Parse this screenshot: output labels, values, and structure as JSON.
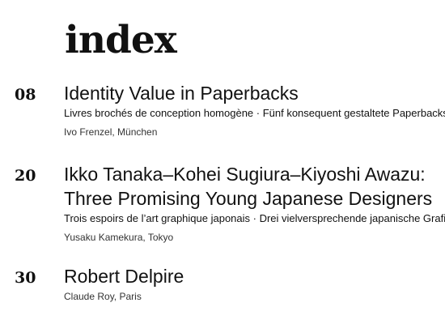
{
  "heading": "index",
  "entries": [
    {
      "number": "08",
      "title_lines": [
        "Identity Value in Paperbacks"
      ],
      "subtitle": "Livres brochés de conception homogène · Fünf konsequent gestaltete Paperbacks",
      "author": "Ivo Frenzel, München"
    },
    {
      "number": "20",
      "title_lines": [
        "Ikko Tanaka–Kohei Sugiura–Kiyoshi Awazu:",
        "Three Promising Young Japanese Designers"
      ],
      "subtitle": "Trois espoirs de l’art graphique japonais · Drei vielversprechende japanische Grafiker",
      "author": "Yusaku Kamekura, Tokyo"
    },
    {
      "number": "30",
      "title_lines": [
        "Robert Delpire"
      ],
      "subtitle": "",
      "author": "Claude Roy, Paris"
    }
  ]
}
